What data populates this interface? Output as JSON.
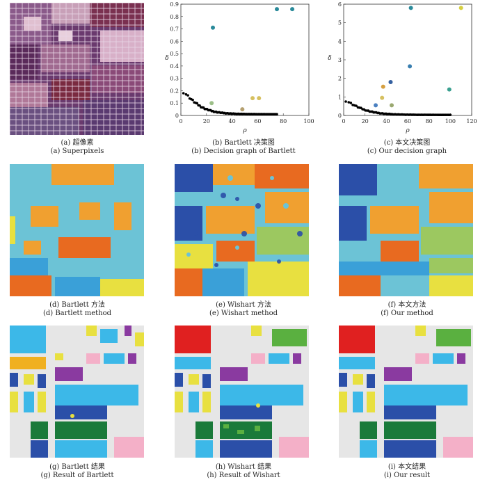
{
  "captions": [
    {
      "zh": "(a) 超像素",
      "en": "(a) Superpixels"
    },
    {
      "zh": "(b) Bartlett 决策图",
      "en": "(b) Decision graph of Bartlett"
    },
    {
      "zh": "(c) 本文决策图",
      "en": "(c) Our decision graph"
    },
    {
      "zh": "(d) Bartlett 方法",
      "en": "(d) Bartlett method"
    },
    {
      "zh": "(e) Wishart 方法",
      "en": "(e) Wishart method"
    },
    {
      "zh": "(f) 本文方法",
      "en": "(f) Our method"
    },
    {
      "zh": "(g) Bartlett 结果",
      "en": "(g) Result of Bartlett"
    },
    {
      "zh": "(h) Wishart 结果",
      "en": "(h) Result of Wishart"
    },
    {
      "zh": "(i) 本文结果",
      "en": "(i) Our result"
    }
  ],
  "chart_data": [
    {
      "type": "scatter",
      "xlabel": "ρ",
      "ylabel": "δ",
      "xlim": [
        0,
        100
      ],
      "ylim": [
        0,
        0.9
      ],
      "xticks": [
        "0",
        "20",
        "40",
        "60",
        "80",
        "100"
      ],
      "yticks": [
        "0",
        "0.1",
        "0.2",
        "0.3",
        "0.4",
        "0.5",
        "0.6",
        "0.7",
        "0.8",
        "0.9"
      ],
      "highlighted": [
        {
          "x": 25,
          "y": 0.71,
          "color": "#2a8a9a"
        },
        {
          "x": 75,
          "y": 0.86,
          "color": "#2a8a9a"
        },
        {
          "x": 87,
          "y": 0.86,
          "color": "#2a8a9a"
        },
        {
          "x": 24,
          "y": 0.1,
          "color": "#9cbf88"
        },
        {
          "x": 48,
          "y": 0.05,
          "color": "#b5a070"
        },
        {
          "x": 56,
          "y": 0.14,
          "color": "#d6c060"
        },
        {
          "x": 61,
          "y": 0.14,
          "color": "#d6c060"
        }
      ],
      "tail": {
        "x0": 2,
        "x1": 75,
        "peak": 0.18,
        "floor": 0.01,
        "color": "#000000"
      }
    },
    {
      "type": "scatter",
      "xlabel": "ρ",
      "ylabel": "δ",
      "xlim": [
        0,
        120
      ],
      "ylim": [
        0,
        6
      ],
      "xticks": [
        "0",
        "20",
        "40",
        "60",
        "80",
        "100",
        "120"
      ],
      "yticks": [
        "0",
        "1",
        "2",
        "3",
        "4",
        "5",
        "6"
      ],
      "highlighted": [
        {
          "x": 63,
          "y": 5.8,
          "color": "#2a8a9a"
        },
        {
          "x": 110,
          "y": 5.8,
          "color": "#d6d040"
        },
        {
          "x": 62,
          "y": 2.65,
          "color": "#3a7fb0"
        },
        {
          "x": 44,
          "y": 1.8,
          "color": "#3560a0"
        },
        {
          "x": 37,
          "y": 1.55,
          "color": "#d6a040"
        },
        {
          "x": 99,
          "y": 1.4,
          "color": "#3aa090"
        },
        {
          "x": 36,
          "y": 0.95,
          "color": "#d6c060"
        },
        {
          "x": 30,
          "y": 0.55,
          "color": "#4a80c0"
        },
        {
          "x": 45,
          "y": 0.55,
          "color": "#9aa870"
        }
      ],
      "tail": {
        "x0": 2,
        "x1": 100,
        "peak": 0.75,
        "floor": 0.03,
        "color": "#000000"
      }
    }
  ]
}
